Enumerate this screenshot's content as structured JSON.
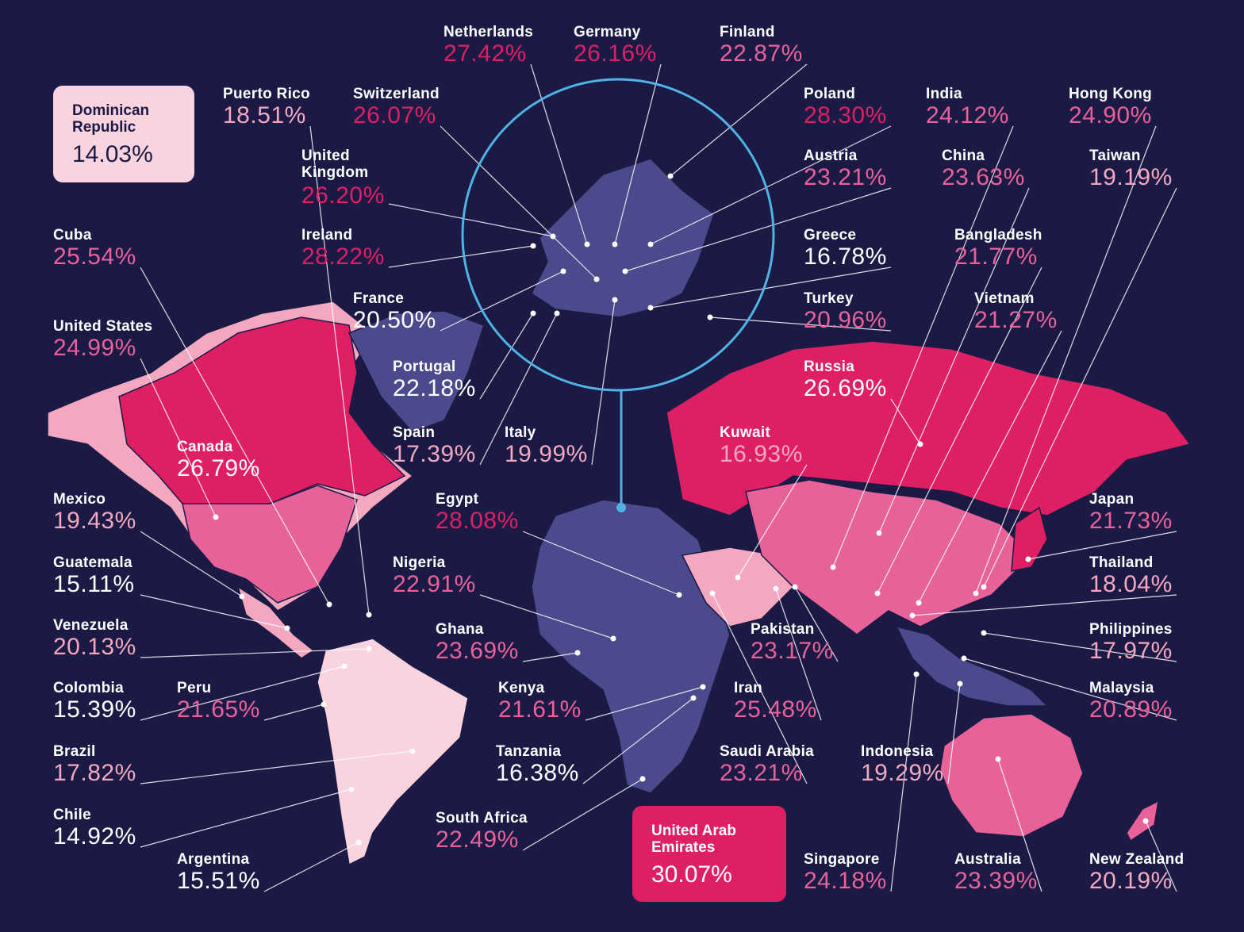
{
  "colors": {
    "background": "#1b1a45",
    "land_base": "#4a4a8c",
    "lowest": "#f9d3de",
    "low": "#f4a8c0",
    "mid": "#e8629a",
    "high": "#de1f64",
    "label_name": "#ffffff",
    "highlight_ring": "#4fb3e6"
  },
  "highlight": {
    "highest": {
      "name": "United Arab Emirates",
      "value": "30.07%",
      "tier": "high"
    },
    "lowest": {
      "name": "Dominican Republic",
      "value": "14.03%",
      "tier": "lowest"
    }
  },
  "countries": [
    {
      "name": "Netherlands",
      "value": "27.42%",
      "tier": "high"
    },
    {
      "name": "Germany",
      "value": "26.16%",
      "tier": "high"
    },
    {
      "name": "Finland",
      "value": "22.87%",
      "tier": "mid"
    },
    {
      "name": "Puerto Rico",
      "value": "18.51%",
      "tier": "low"
    },
    {
      "name": "Switzerland",
      "value": "26.07%",
      "tier": "high"
    },
    {
      "name": "Poland",
      "value": "28.30%",
      "tier": "high"
    },
    {
      "name": "India",
      "value": "24.12%",
      "tier": "mid"
    },
    {
      "name": "Hong Kong",
      "value": "24.90%",
      "tier": "mid"
    },
    {
      "name": "United Kingdom",
      "value": "26.20%",
      "tier": "high"
    },
    {
      "name": "Austria",
      "value": "23.21%",
      "tier": "mid"
    },
    {
      "name": "China",
      "value": "23.63%",
      "tier": "mid"
    },
    {
      "name": "Taiwan",
      "value": "19.19%",
      "tier": "low"
    },
    {
      "name": "Cuba",
      "value": "25.54%",
      "tier": "mid"
    },
    {
      "name": "Ireland",
      "value": "28.22%",
      "tier": "high"
    },
    {
      "name": "Greece",
      "value": "16.78%",
      "tier": "lowest"
    },
    {
      "name": "Bangladesh",
      "value": "21.77%",
      "tier": "mid"
    },
    {
      "name": "France",
      "value": "20.50%",
      "tier": "lowest"
    },
    {
      "name": "Turkey",
      "value": "20.96%",
      "tier": "mid"
    },
    {
      "name": "Vietnam",
      "value": "21.27%",
      "tier": "mid"
    },
    {
      "name": "United States",
      "value": "24.99%",
      "tier": "mid"
    },
    {
      "name": "Portugal",
      "value": "22.18%",
      "tier": "lowest"
    },
    {
      "name": "Russia",
      "value": "26.69%",
      "tier": "lowest"
    },
    {
      "name": "Spain",
      "value": "17.39%",
      "tier": "low"
    },
    {
      "name": "Italy",
      "value": "19.99%",
      "tier": "low"
    },
    {
      "name": "Canada",
      "value": "26.79%",
      "tier": "lowest"
    },
    {
      "name": "Kuwait",
      "value": "16.93%",
      "tier": "low"
    },
    {
      "name": "Mexico",
      "value": "19.43%",
      "tier": "low"
    },
    {
      "name": "Egypt",
      "value": "28.08%",
      "tier": "high"
    },
    {
      "name": "Japan",
      "value": "21.73%",
      "tier": "mid"
    },
    {
      "name": "Guatemala",
      "value": "15.11%",
      "tier": "lowest"
    },
    {
      "name": "Nigeria",
      "value": "22.91%",
      "tier": "mid"
    },
    {
      "name": "Thailand",
      "value": "18.04%",
      "tier": "low"
    },
    {
      "name": "Venezuela",
      "value": "20.13%",
      "tier": "low"
    },
    {
      "name": "Ghana",
      "value": "23.69%",
      "tier": "mid"
    },
    {
      "name": "Pakistan",
      "value": "23.17%",
      "tier": "mid"
    },
    {
      "name": "Philippines",
      "value": "17.97%",
      "tier": "low"
    },
    {
      "name": "Colombia",
      "value": "15.39%",
      "tier": "lowest"
    },
    {
      "name": "Peru",
      "value": "21.65%",
      "tier": "mid"
    },
    {
      "name": "Kenya",
      "value": "21.61%",
      "tier": "mid"
    },
    {
      "name": "Iran",
      "value": "25.48%",
      "tier": "mid"
    },
    {
      "name": "Malaysia",
      "value": "20.89%",
      "tier": "mid"
    },
    {
      "name": "Brazil",
      "value": "17.82%",
      "tier": "low"
    },
    {
      "name": "Tanzania",
      "value": "16.38%",
      "tier": "lowest"
    },
    {
      "name": "Saudi Arabia",
      "value": "23.21%",
      "tier": "mid"
    },
    {
      "name": "Indonesia",
      "value": "19.29%",
      "tier": "low"
    },
    {
      "name": "Chile",
      "value": "14.92%",
      "tier": "lowest"
    },
    {
      "name": "South Africa",
      "value": "22.49%",
      "tier": "mid"
    },
    {
      "name": "Argentina",
      "value": "15.51%",
      "tier": "lowest"
    },
    {
      "name": "Singapore",
      "value": "24.18%",
      "tier": "mid"
    },
    {
      "name": "Australia",
      "value": "23.39%",
      "tier": "mid"
    },
    {
      "name": "New Zealand",
      "value": "20.19%",
      "tier": "low"
    }
  ]
}
